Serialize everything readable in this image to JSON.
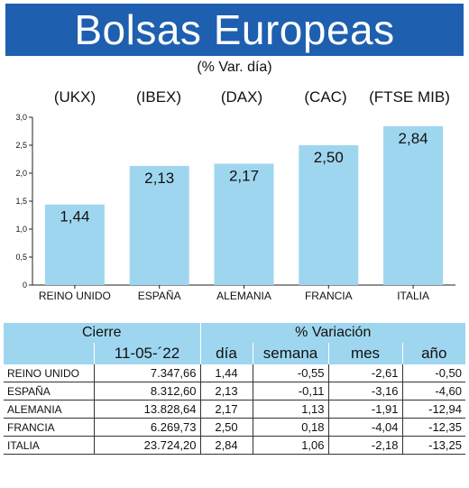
{
  "header": {
    "title": "Bolsas Europeas",
    "subtitle": "(% Var. día)"
  },
  "index_codes": [
    "(UKX)",
    "(IBEX)",
    "(DAX)",
    "(CAC)",
    "(FTSE MIB)"
  ],
  "chart_data": {
    "type": "bar",
    "categories": [
      "REINO UNIDO",
      "ESPAÑA",
      "ALEMANIA",
      "FRANCIA",
      "ITALIA"
    ],
    "values": [
      1.44,
      2.13,
      2.17,
      2.5,
      2.84
    ],
    "value_labels": [
      "1,44",
      "2,13",
      "2,17",
      "2,50",
      "2,84"
    ],
    "yticks": [
      "0",
      "0,5",
      "1,0",
      "1,5",
      "2,0",
      "2,5",
      "3,0"
    ],
    "ylim": [
      0,
      3
    ],
    "bar_color": "#9fd6ef",
    "grid": false
  },
  "table": {
    "header_cierre": "Cierre",
    "header_variacion": "% Variación",
    "date": "11-05-´22",
    "columns": [
      "día",
      "semana",
      "mes",
      "año"
    ],
    "rows": [
      {
        "name": "REINO UNIDO",
        "cierre": "7.347,66",
        "dia": "1,44",
        "semana": "-0,55",
        "mes": "-2,61",
        "ano": "-0,50"
      },
      {
        "name": "ESPAÑA",
        "cierre": "8.312,60",
        "dia": "2,13",
        "semana": "-0,11",
        "mes": "-3,16",
        "ano": "-4,60"
      },
      {
        "name": "ALEMANIA",
        "cierre": "13.828,64",
        "dia": "2,17",
        "semana": "1,13",
        "mes": "-1,91",
        "ano": "-12,94"
      },
      {
        "name": "FRANCIA",
        "cierre": "6.269,73",
        "dia": "2,50",
        "semana": "0,18",
        "mes": "-4,04",
        "ano": "-12,35"
      },
      {
        "name": "ITALIA",
        "cierre": "23.724,20",
        "dia": "2,84",
        "semana": "1,06",
        "mes": "-2,18",
        "ano": "-13,25"
      }
    ]
  }
}
